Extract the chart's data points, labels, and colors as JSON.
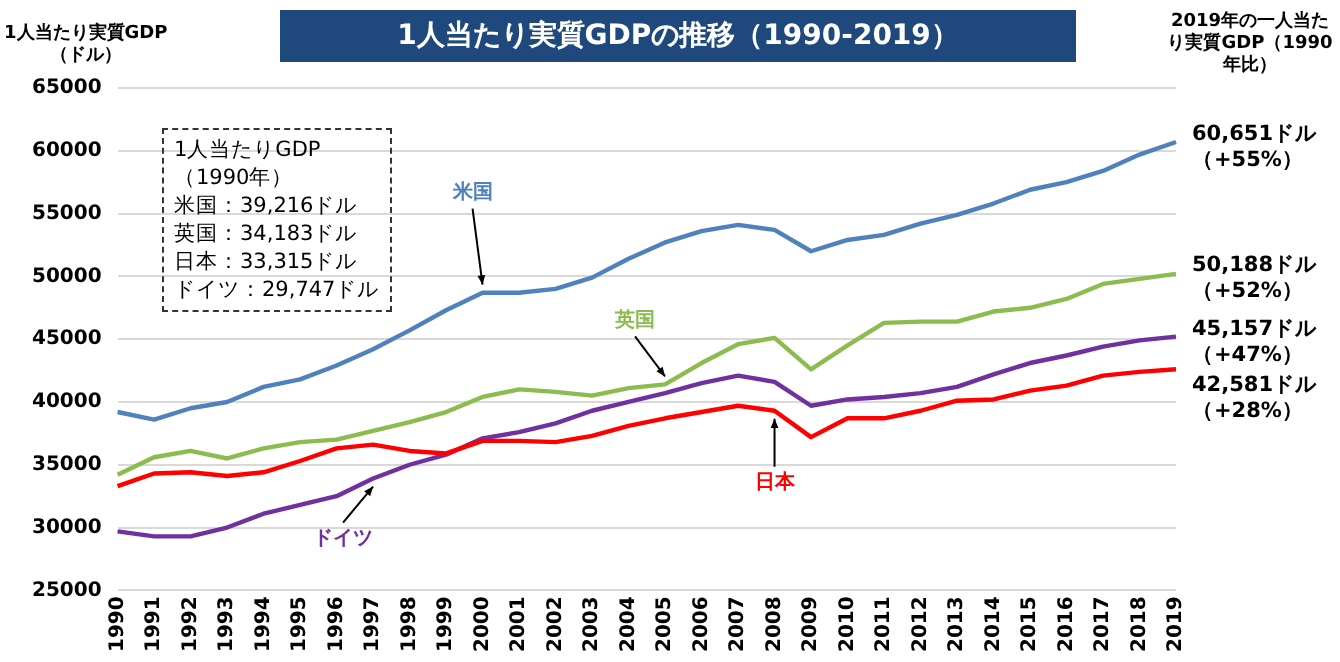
{
  "chart_data": {
    "type": "line",
    "title": "1人当たり実質GDPの推移（1990-2019）",
    "ylabel": "1人当たり実質GDP\n（ドル）",
    "categories": [
      "1990",
      "1991",
      "1992",
      "1993",
      "1994",
      "1995",
      "1996",
      "1997",
      "1998",
      "1999",
      "2000",
      "2001",
      "2002",
      "2003",
      "2004",
      "2005",
      "2006",
      "2007",
      "2008",
      "2009",
      "2010",
      "2011",
      "2012",
      "2013",
      "2014",
      "2015",
      "2016",
      "2017",
      "2018",
      "2019"
    ],
    "series": [
      {
        "name": "米国",
        "color": "#4f81bd",
        "values": [
          39200,
          38600,
          39500,
          40000,
          41200,
          41800,
          42900,
          44200,
          45700,
          47300,
          48700,
          48700,
          49000,
          49900,
          51400,
          52700,
          53600,
          54100,
          53700,
          52000,
          52900,
          53300,
          54200,
          54900,
          55800,
          56900,
          57500,
          58400,
          59700,
          60700
        ]
      },
      {
        "name": "英国",
        "color": "#8cbc4f",
        "values": [
          34200,
          35600,
          36100,
          35500,
          36300,
          36800,
          37000,
          37700,
          38400,
          39200,
          40400,
          41000,
          40800,
          40500,
          41100,
          41400,
          43100,
          44600,
          45100,
          42600,
          44500,
          46300,
          46400,
          46400,
          47200,
          47500,
          48200,
          49400,
          49800,
          50200
        ]
      },
      {
        "name": "日本",
        "color": "#ff0000",
        "values": [
          33300,
          34300,
          34400,
          34100,
          34400,
          35300,
          36300,
          36600,
          36100,
          35900,
          36900,
          36900,
          36800,
          37300,
          38100,
          38700,
          39200,
          39700,
          39300,
          37200,
          38700,
          38700,
          39300,
          40100,
          40200,
          40900,
          41300,
          42100,
          42400,
          42600
        ]
      },
      {
        "name": "ドイツ",
        "color": "#7030a0",
        "values": [
          29700,
          29300,
          29300,
          30000,
          31100,
          31800,
          32500,
          33900,
          35000,
          35800,
          37100,
          37600,
          38300,
          39300,
          40000,
          40700,
          41500,
          42100,
          41600,
          39700,
          40200,
          40400,
          40700,
          41200,
          42200,
          43100,
          43700,
          44400,
          44900,
          45200
        ]
      }
    ],
    "ylim": [
      25000,
      65000
    ],
    "yticks": [
      25000,
      30000,
      35000,
      40000,
      45000,
      50000,
      55000,
      60000,
      65000
    ],
    "grid": "y",
    "legend": false,
    "marker": "none",
    "line_style": "solid",
    "annotations": [
      "1人当たりGDP（1990年）",
      "米国：39,216ドル",
      "英国：34,183ドル",
      "日本：33,315ドル",
      "ドイツ：29,747ドル",
      "2019年の一人当たり実質GDP（1990年比）",
      {
        "text": "60,651ドル（+55%）",
        "x": "2019",
        "y": 60651
      },
      {
        "text": "50,188ドル（+52%）",
        "x": "2019",
        "y": 50188
      },
      {
        "text": "45,157ドル（+47%）",
        "x": "2019",
        "y": 45157
      },
      {
        "text": "42,581ドル（+28%）",
        "x": "2019",
        "y": 42581
      }
    ]
  }
}
